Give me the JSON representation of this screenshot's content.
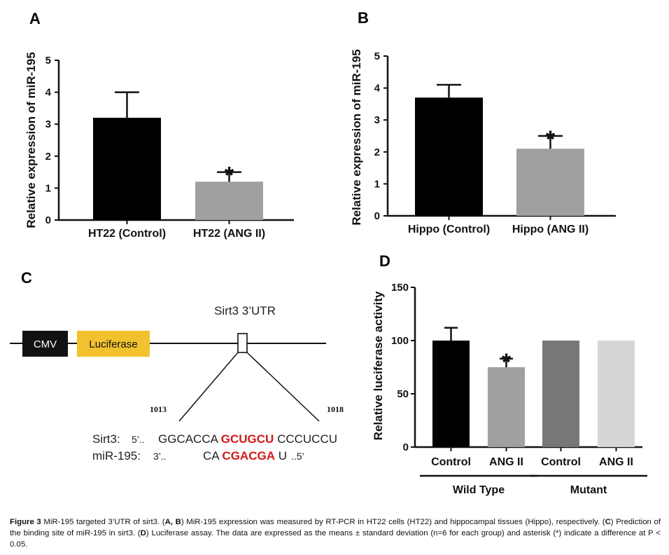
{
  "panels": {
    "a": "A",
    "b": "B",
    "c": "C",
    "d": "D"
  },
  "chart_data": [
    {
      "panel": "A",
      "type": "bar",
      "ylabel": "Relative expression of miR-195",
      "ylim": [
        0,
        5
      ],
      "yticks": [
        0,
        1,
        2,
        3,
        4,
        5
      ],
      "categories": [
        "HT22 (Control)",
        "HT22 (ANG II)"
      ],
      "values": [
        3.2,
        1.2
      ],
      "errors": [
        0.8,
        0.3
      ],
      "colors": [
        "#000000",
        "#a0a0a0"
      ],
      "significance": [
        "",
        "*"
      ]
    },
    {
      "panel": "B",
      "type": "bar",
      "ylabel": "Relative expression of miR-195",
      "ylim": [
        0,
        5
      ],
      "yticks": [
        0,
        1,
        2,
        3,
        4,
        5
      ],
      "categories": [
        "Hippo (Control)",
        "Hippo (ANG II)"
      ],
      "values": [
        3.7,
        2.1
      ],
      "errors": [
        0.4,
        0.4
      ],
      "colors": [
        "#000000",
        "#a0a0a0"
      ],
      "significance": [
        "",
        "*"
      ]
    },
    {
      "panel": "D",
      "type": "bar",
      "ylabel": "Relative luciferase activity",
      "ylim": [
        0,
        150
      ],
      "yticks": [
        0,
        50,
        100,
        150
      ],
      "categories": [
        "Control",
        "ANG II",
        "Control",
        "ANG II"
      ],
      "values": [
        100,
        75,
        100,
        100
      ],
      "errors": [
        12,
        8,
        0,
        0
      ],
      "colors": [
        "#000000",
        "#a0a0a0",
        "#777777",
        "#d6d6d6"
      ],
      "significance": [
        "",
        "*",
        "",
        ""
      ],
      "groups": [
        {
          "label": "Wild Type",
          "members": [
            0,
            1
          ]
        },
        {
          "label": "Mutant",
          "members": [
            2,
            3
          ]
        }
      ]
    }
  ],
  "diagram": {
    "title": "Sirt3 3’UTR",
    "cmv": "CMV",
    "luciferase": "Luciferase",
    "pos_start": "1013",
    "pos_end": "1018",
    "sirt3_label": "Sirt3:",
    "sirt3_prime": "5’..",
    "sirt3_pre": "GGCACCA",
    "sirt3_site": "GCUGCU",
    "sirt3_post": "CCCUCCU",
    "mir_label": "miR-195:",
    "mir_prime": "3’..",
    "mir_pre": "CA",
    "mir_site": "CGACGA",
    "mir_post": "U",
    "mir_end": "..5’",
    "colors": {
      "cmv": "#111111",
      "luciferase": "#f2c12e",
      "site": "#d11a1a"
    }
  },
  "caption": {
    "label": "Figure 3",
    "t1": " MiR-195 targeted 3’UTR of sirt3. (",
    "b1": "A, B",
    "t2": ") MiR-195 expression was measured by RT-PCR in HT22 cells (HT22) and hippocampal tissues (Hippo), respectively. (",
    "b2": "C",
    "t3": ") Prediction of the binding site of miR-195 in sirt3. (",
    "b3": "D",
    "t4": ") Luciferase assay. The data are expressed as the means ± standard deviation (n=6 for each group) and asterisk (*) indicate a difference at P < 0.05."
  }
}
